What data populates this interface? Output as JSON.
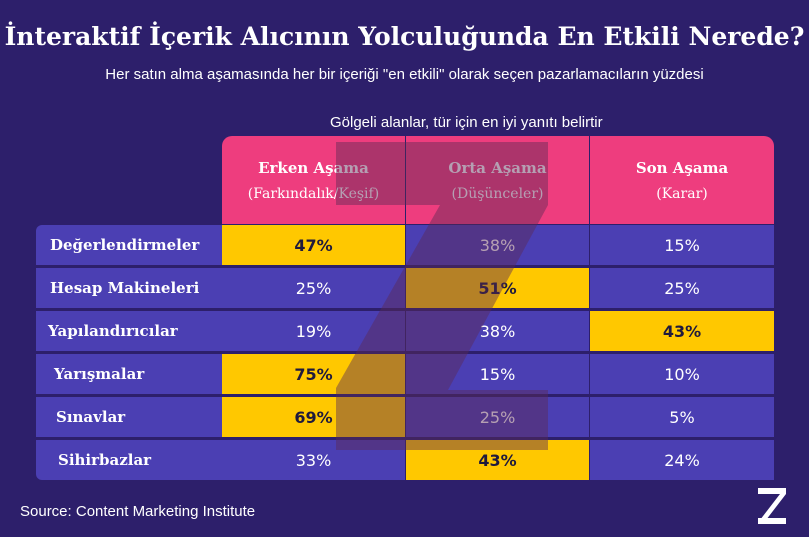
{
  "title": "İnteraktif İçerik Alıcının Yolculuğunda En Etkili Nerede?",
  "subtitle": "Her satın alma aşamasında her bir içeriği \"en etkili\" olarak seçen pazarlamacıların yüzdesi",
  "note": "Gölgeli alanlar, tür için en iyi yanıtı belirtir",
  "source": "Source: Content Marketing Institute",
  "colors": {
    "background": "#2d1f6b",
    "header": "#ee3d7e",
    "row": "#4b3fb3",
    "highlight": "#ffc800"
  },
  "chart_data": {
    "type": "table",
    "title": "İnteraktif İçerik Alıcının Yolculuğunda En Etkili Nerede?",
    "columns": [
      {
        "name": "Erken Aşama",
        "sub": "(Farkındalık/Keşif)"
      },
      {
        "name": "Orta Aşama",
        "sub": "(Düşünceler)"
      },
      {
        "name": "Son Aşama",
        "sub": "(Karar)"
      }
    ],
    "rows": [
      {
        "label": "Değerlendirmeler",
        "values": [
          "47%",
          "38%",
          "15%"
        ],
        "best": 0
      },
      {
        "label": "Hesap Makineleri",
        "values": [
          "25%",
          "51%",
          "25%"
        ],
        "best": 1
      },
      {
        "label": "Yapılandırıcılar",
        "values": [
          "19%",
          "38%",
          "43%"
        ],
        "best": 2
      },
      {
        "label": "Yarışmalar",
        "values": [
          "75%",
          "15%",
          "10%"
        ],
        "best": 0
      },
      {
        "label": "Sınavlar",
        "values": [
          "69%",
          "25%",
          "5%"
        ],
        "best": 0
      },
      {
        "label": "Sihirbazlar",
        "values": [
          "33%",
          "43%",
          "24%"
        ],
        "best": 1
      }
    ]
  }
}
